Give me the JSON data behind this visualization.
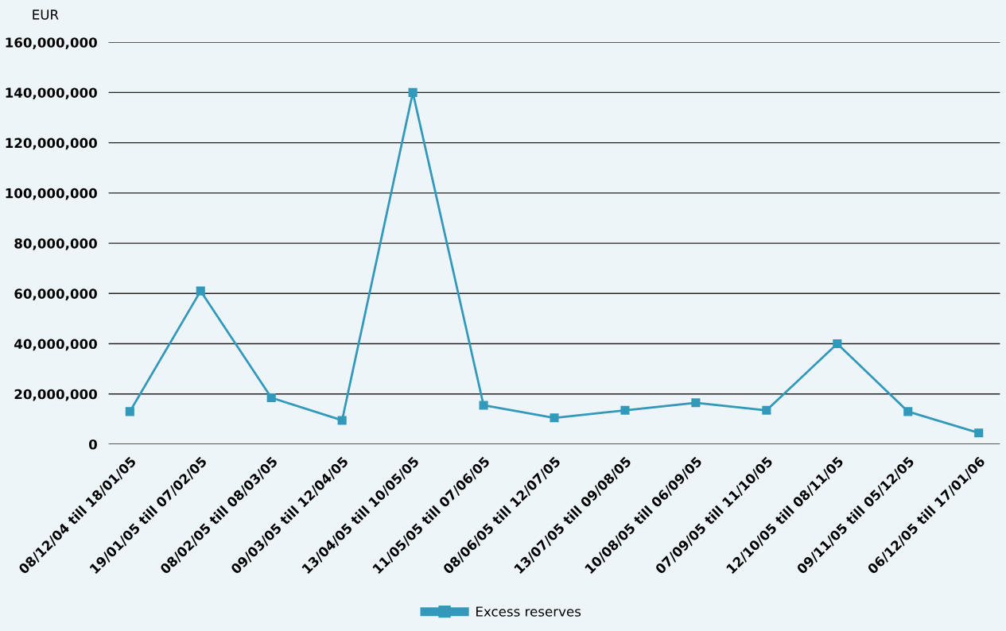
{
  "chart_data": {
    "type": "line",
    "ylabel": "EUR",
    "categories": [
      "08/12/04 till 18/01/05",
      "19/01/05 till 07/02/05",
      "08/02/05 till 08/03/05",
      "09/03/05 till 12/04/05",
      "13/04/05 till 10/05/05",
      "11/05/05 till 07/06/05",
      "08/06/05 till 12/07/05",
      "13/07/05 till 09/08/05",
      "10/08/05 till 06/09/05",
      "07/09/05 till 11/10/05",
      "12/10/05 till 08/11/05",
      "09/11/05 till 05/12/05",
      "06/12/05 till 17/01/06"
    ],
    "series": [
      {
        "name": "Excess reserves",
        "color": "#3399bb",
        "values": [
          13000000,
          61000000,
          18500000,
          9500000,
          140000000,
          15500000,
          10500000,
          13500000,
          16500000,
          13500000,
          40000000,
          13000000,
          4500000
        ]
      }
    ],
    "ylim": [
      0,
      160000000
    ],
    "yticks": [
      {
        "value": 0,
        "label": "0"
      },
      {
        "value": 20000000,
        "label": "20,000,000"
      },
      {
        "value": 40000000,
        "label": "40,000,000"
      },
      {
        "value": 60000000,
        "label": "60,000,000"
      },
      {
        "value": 80000000,
        "label": "80,000,000"
      },
      {
        "value": 100000000,
        "label": "100,000,000"
      },
      {
        "value": 120000000,
        "label": "120,000,000"
      },
      {
        "value": 140000000,
        "label": "140,000,000"
      },
      {
        "value": 160000000,
        "label": "160,000,000"
      }
    ],
    "grid": "y",
    "legend": "bottom",
    "marker": "square",
    "line_style": "solid"
  }
}
